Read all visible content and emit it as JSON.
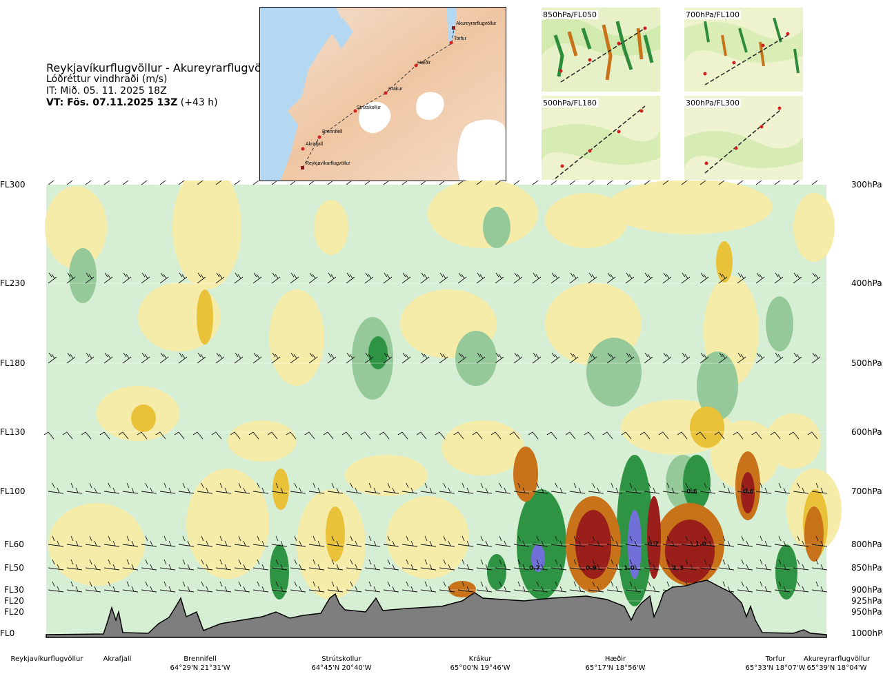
{
  "title": {
    "route": "Reykjavíkurflugvöllur - Akureyrarflugvöllur",
    "parameter": "Lóðréttur vindhraði (m/s)",
    "it": "IT: Mið. 05. 11. 2025 18Z",
    "vt_bold": "VT: Fös. 07.11.2025 13Z",
    "vt_rest": "(+43 h)"
  },
  "map": {
    "places": [
      "Akureyrarflugvöllur",
      "Torfur",
      "Hæðir",
      "Krákur",
      "Strútskollur",
      "Brennifell",
      "Akrafjall",
      "Reykjavíkurflugvöllur"
    ]
  },
  "panels": [
    {
      "label": "850hPa/FL050"
    },
    {
      "label": "700hPa/FL100"
    },
    {
      "label": "500hPa/FL180"
    },
    {
      "label": "300hPa/FL300"
    }
  ],
  "chart_data": {
    "type": "heatmap",
    "title": "Lóðréttur vindhraði (m/s)",
    "flight_levels": [
      "FL300",
      "FL230",
      "FL180",
      "FL130",
      "FL100",
      "FL60",
      "FL50",
      "FL30",
      "FL20",
      "FL20",
      "FL0"
    ],
    "pressure_levels": [
      "300hPa",
      "400hPa",
      "500hPa",
      "600hPa",
      "700hPa",
      "800hPa",
      "850hPa",
      "900hPa",
      "925hPa",
      "950hPa",
      "1000hPa"
    ],
    "value_labels": [
      "0.6",
      "0.6",
      "0.7",
      "1.0",
      "0.7",
      "0.9",
      "1.0",
      "1.3"
    ],
    "locations": [
      {
        "name": "Reykjavíkurflugvöllur",
        "coord": ""
      },
      {
        "name": "Akrafjall",
        "coord": ""
      },
      {
        "name": "Brennifell",
        "coord": "64°29'N 21°31'W"
      },
      {
        "name": "Strútskollur",
        "coord": "64°45'N 20°40'W"
      },
      {
        "name": "Krákur",
        "coord": "65°00'N 19°46'W"
      },
      {
        "name": "Hæðir",
        "coord": "65°17'N 18°56'W"
      },
      {
        "name": "Torfur",
        "coord": "65°33'N 18°07'W"
      },
      {
        "name": "Akureyrarflugvöllur",
        "coord": "65°39'N 18°04'W"
      }
    ],
    "colors": {
      "weak_down": "#f6eca9",
      "weak_up": "#cde9cc",
      "moderate_up": "#95c99a",
      "strong_up": "#2e9443",
      "very_strong_up": "#7070d8",
      "moderate_down": "#e9c23a",
      "strong_down": "#c8721a",
      "very_strong_down": "#9a1f1a",
      "terrain": "#7e7e7e"
    }
  }
}
